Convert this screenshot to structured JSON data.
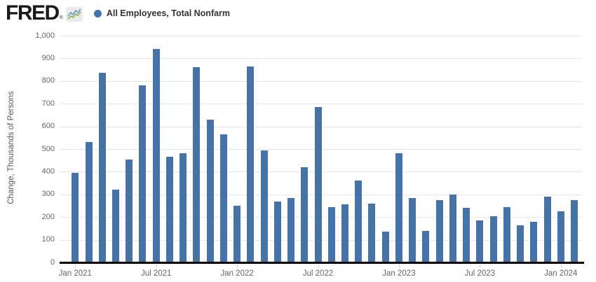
{
  "header": {
    "logo_text": "FRED",
    "registered_mark": "®",
    "logo_icon": "sparkline-chart-icon"
  },
  "legend": {
    "label": "All Employees, Total Nonfarm",
    "marker_color": "#4572a7"
  },
  "chart_data": {
    "type": "bar",
    "title": "All Employees, Total Nonfarm",
    "xlabel": "",
    "ylabel": "Change, Thousands of Persons",
    "ylim": [
      0,
      1000
    ],
    "ytick_interval": 100,
    "ytick_labels": [
      "0",
      "100",
      "200",
      "300",
      "400",
      "500",
      "600",
      "700",
      "800",
      "900",
      "1,000"
    ],
    "grid": true,
    "legend_position": "top-left",
    "bar_color": "#4572a7",
    "gridline_color": "#e6e6e6",
    "axis_line_color": "#000000",
    "xtick_mark_color": "#ccd6eb",
    "categories": [
      "Jan 2021",
      "Feb 2021",
      "Mar 2021",
      "Apr 2021",
      "May 2021",
      "Jun 2021",
      "Jul 2021",
      "Aug 2021",
      "Sep 2021",
      "Oct 2021",
      "Nov 2021",
      "Dec 2021",
      "Jan 2022",
      "Feb 2022",
      "Mar 2022",
      "Apr 2022",
      "May 2022",
      "Jun 2022",
      "Jul 2022",
      "Aug 2022",
      "Sep 2022",
      "Oct 2022",
      "Nov 2022",
      "Dec 2022",
      "Jan 2023",
      "Feb 2023",
      "Mar 2023",
      "Apr 2023",
      "May 2023",
      "Jun 2023",
      "Jul 2023",
      "Aug 2023",
      "Sep 2023",
      "Oct 2023",
      "Nov 2023",
      "Dec 2023",
      "Jan 2024",
      "Feb 2024"
    ],
    "values": [
      395,
      530,
      835,
      320,
      455,
      780,
      940,
      465,
      480,
      860,
      630,
      565,
      250,
      865,
      495,
      270,
      285,
      420,
      685,
      245,
      255,
      360,
      260,
      135,
      480,
      285,
      140,
      275,
      300,
      240,
      185,
      205,
      245,
      165,
      180,
      290,
      225,
      275
    ],
    "xtick_labels": [
      "Jan 2021",
      "Jul 2021",
      "Jan 2022",
      "Jul 2022",
      "Jan 2023",
      "Jul 2023",
      "Jan 2024"
    ],
    "xtick_indices": [
      0,
      6,
      12,
      18,
      24,
      30,
      36
    ]
  }
}
